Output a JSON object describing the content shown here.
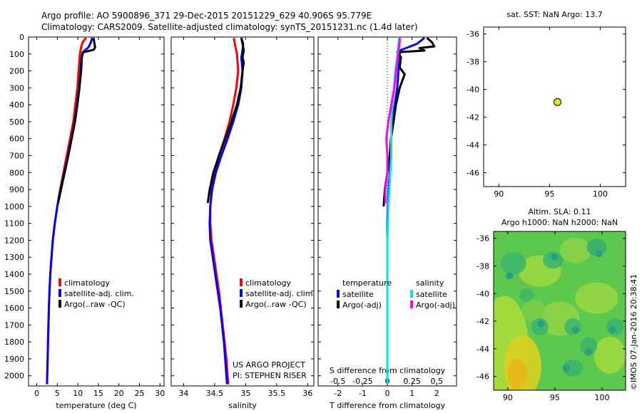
{
  "figure": {
    "title_line1": "Argo profile: AO 5900896_371 29-Dec-2015 20151229_629 40.906S 95.779E",
    "title_line2": "Climatology: CARS2009. Satellite-adjusted climatology: synTS_20151231.nc (1.4d later)",
    "credit": "©IMOS 07-Jan-2016 20:38:41",
    "project_line1": "US ARGO PROJECT",
    "project_line2": "PI: STEPHEN RISER"
  },
  "colors": {
    "climatology": "#ff0000",
    "satellite": "#0000ff",
    "argo": "#000000",
    "sal_satellite": "#00e5e5",
    "sal_argo": "#ff00ff",
    "point": "#e6e600",
    "axis": "#000000"
  },
  "chart_data": [
    {
      "type": "line",
      "xlabel": "temperature (deg C)",
      "ylabel": "",
      "xlim": [
        -2,
        31
      ],
      "ylim": [
        2060,
        0
      ],
      "xticks": [
        0,
        5,
        10,
        15,
        20,
        25,
        30
      ],
      "yticks": [
        0,
        100,
        200,
        300,
        400,
        500,
        600,
        700,
        800,
        900,
        1000,
        1100,
        1200,
        1300,
        1400,
        1500,
        1600,
        1700,
        1800,
        1900,
        2000
      ],
      "legend": [
        "climatology",
        "satellite-adj. clim.",
        "Argo(..raw -QC)"
      ],
      "series": [
        {
          "name": "climatology",
          "color": "climatology",
          "points": [
            [
              12.0,
              5
            ],
            [
              11.2,
              30
            ],
            [
              10.8,
              60
            ],
            [
              10.5,
              100
            ],
            [
              10.2,
              200
            ],
            [
              9.9,
              300
            ],
            [
              9.4,
              400
            ],
            [
              8.9,
              500
            ],
            [
              8.1,
              600
            ],
            [
              7.3,
              700
            ],
            [
              6.5,
              800
            ],
            [
              5.7,
              900
            ],
            [
              5.0,
              1000
            ],
            [
              4.4,
              1100
            ],
            [
              3.9,
              1200
            ],
            [
              3.6,
              1300
            ],
            [
              3.3,
              1400
            ],
            [
              3.1,
              1500
            ],
            [
              2.95,
              1600
            ],
            [
              2.85,
              1700
            ],
            [
              2.75,
              1800
            ],
            [
              2.65,
              1900
            ],
            [
              2.55,
              2000
            ],
            [
              2.5,
              2050
            ]
          ]
        },
        {
          "name": "satellite-adj. clim.",
          "color": "satellite",
          "points": [
            [
              13.5,
              5
            ],
            [
              13.2,
              30
            ],
            [
              12.6,
              60
            ],
            [
              11.2,
              90
            ],
            [
              10.9,
              120
            ],
            [
              10.7,
              200
            ],
            [
              10.3,
              300
            ],
            [
              9.8,
              400
            ],
            [
              9.2,
              500
            ],
            [
              8.4,
              600
            ],
            [
              7.6,
              700
            ],
            [
              6.7,
              800
            ],
            [
              5.8,
              900
            ],
            [
              5.0,
              1000
            ],
            [
              4.4,
              1100
            ],
            [
              3.9,
              1200
            ],
            [
              3.6,
              1300
            ],
            [
              3.3,
              1400
            ],
            [
              3.1,
              1500
            ],
            [
              2.95,
              1600
            ],
            [
              2.85,
              1700
            ],
            [
              2.75,
              1800
            ],
            [
              2.65,
              1900
            ],
            [
              2.55,
              2000
            ],
            [
              2.5,
              2050
            ]
          ]
        },
        {
          "name": "Argo(..raw -QC)",
          "color": "argo",
          "points": [
            [
              13.8,
              5
            ],
            [
              14.0,
              30
            ],
            [
              14.2,
              60
            ],
            [
              13.9,
              75
            ],
            [
              11.3,
              90
            ],
            [
              11.0,
              120
            ],
            [
              10.8,
              200
            ],
            [
              10.4,
              300
            ],
            [
              9.9,
              400
            ],
            [
              9.3,
              500
            ],
            [
              8.5,
              600
            ],
            [
              7.7,
              700
            ],
            [
              6.8,
              800
            ],
            [
              5.9,
              900
            ],
            [
              5.2,
              980
            ]
          ]
        }
      ]
    },
    {
      "type": "line",
      "xlabel": "salinity",
      "ylabel": "",
      "xlim": [
        33.8,
        36.1
      ],
      "ylim": [
        2060,
        0
      ],
      "xticks": [
        34,
        34.5,
        35,
        35.5,
        36
      ],
      "legend": [
        "climatology",
        "satellite-adj. clim.",
        "Argo(..raw -QC)"
      ],
      "series": [
        {
          "name": "climatology",
          "color": "climatology",
          "points": [
            [
              34.81,
              5
            ],
            [
              34.83,
              50
            ],
            [
              34.86,
              100
            ],
            [
              34.88,
              200
            ],
            [
              34.85,
              300
            ],
            [
              34.8,
              400
            ],
            [
              34.74,
              500
            ],
            [
              34.66,
              600
            ],
            [
              34.57,
              700
            ],
            [
              34.5,
              800
            ],
            [
              34.45,
              900
            ],
            [
              34.43,
              1000
            ],
            [
              34.43,
              1100
            ],
            [
              34.45,
              1200
            ],
            [
              34.49,
              1300
            ],
            [
              34.53,
              1400
            ],
            [
              34.57,
              1500
            ],
            [
              34.6,
              1600
            ],
            [
              34.63,
              1700
            ],
            [
              34.66,
              1800
            ],
            [
              34.69,
              1900
            ],
            [
              34.71,
              2000
            ],
            [
              34.72,
              2050
            ]
          ]
        },
        {
          "name": "satellite-adj. clim.",
          "color": "satellite",
          "points": [
            [
              34.93,
              5
            ],
            [
              34.96,
              40
            ],
            [
              34.95,
              80
            ],
            [
              34.93,
              120
            ],
            [
              34.95,
              200
            ],
            [
              34.93,
              300
            ],
            [
              34.88,
              400
            ],
            [
              34.8,
              500
            ],
            [
              34.71,
              600
            ],
            [
              34.61,
              700
            ],
            [
              34.52,
              800
            ],
            [
              34.46,
              900
            ],
            [
              34.43,
              1000
            ],
            [
              34.42,
              1100
            ],
            [
              34.43,
              1200
            ],
            [
              34.47,
              1300
            ],
            [
              34.51,
              1400
            ],
            [
              34.55,
              1500
            ],
            [
              34.59,
              1600
            ],
            [
              34.62,
              1700
            ],
            [
              34.65,
              1800
            ],
            [
              34.67,
              1900
            ],
            [
              34.69,
              2000
            ],
            [
              34.7,
              2050
            ]
          ]
        },
        {
          "name": "Argo(..raw -QC)",
          "color": "argo",
          "points": [
            [
              34.93,
              5
            ],
            [
              34.95,
              40
            ],
            [
              34.97,
              80
            ],
            [
              34.95,
              120
            ],
            [
              34.97,
              150
            ],
            [
              34.95,
              200
            ],
            [
              34.92,
              300
            ],
            [
              34.86,
              400
            ],
            [
              34.77,
              500
            ],
            [
              34.67,
              600
            ],
            [
              34.57,
              700
            ],
            [
              34.48,
              800
            ],
            [
              34.42,
              900
            ],
            [
              34.39,
              980
            ]
          ]
        }
      ]
    },
    {
      "type": "line",
      "xlabel": "T difference from climatology",
      "x2label": "S difference from climatology",
      "ylabel": "",
      "xlim": [
        -2.8,
        2.8
      ],
      "x2lim": [
        -0.7,
        0.7
      ],
      "ylim": [
        2060,
        0
      ],
      "xticks": [
        -2,
        -1,
        0,
        1,
        2
      ],
      "x2ticks": [
        -0.5,
        -0.25,
        0,
        0.25,
        0.5
      ],
      "legend_titles": [
        "temperature",
        "salinity"
      ],
      "legend": [
        "satellite",
        "Argo(-adj)",
        "satellite",
        "Argo(-adj)"
      ],
      "series": [
        {
          "name": "satellite",
          "color": "satellite",
          "axis": "T",
          "points": [
            [
              1.5,
              5
            ],
            [
              1.2,
              40
            ],
            [
              0.5,
              80
            ],
            [
              0.5,
              120
            ],
            [
              0.45,
              200
            ],
            [
              0.4,
              300
            ],
            [
              0.3,
              400
            ],
            [
              0.2,
              500
            ],
            [
              0.15,
              600
            ],
            [
              0.1,
              700
            ],
            [
              0.1,
              800
            ],
            [
              0.05,
              900
            ],
            [
              0.02,
              1000
            ],
            [
              0.0,
              1100
            ],
            [
              0.0,
              1200
            ],
            [
              0.0,
              1300
            ],
            [
              0.0,
              1400
            ],
            [
              0.0,
              1500
            ],
            [
              0.0,
              1600
            ],
            [
              0.0,
              1700
            ],
            [
              0.0,
              1800
            ],
            [
              0.0,
              1900
            ],
            [
              0.0,
              2000
            ],
            [
              0.0,
              2050
            ]
          ]
        },
        {
          "name": "Argo(-adj)",
          "color": "argo",
          "axis": "T",
          "points": [
            [
              1.6,
              5
            ],
            [
              1.8,
              30
            ],
            [
              1.9,
              55
            ],
            [
              1.3,
              65
            ],
            [
              1.5,
              80
            ],
            [
              0.4,
              90
            ],
            [
              0.55,
              120
            ],
            [
              0.5,
              180
            ],
            [
              0.7,
              220
            ],
            [
              0.5,
              300
            ],
            [
              0.35,
              400
            ],
            [
              0.25,
              500
            ],
            [
              0.15,
              600
            ],
            [
              0.1,
              700
            ],
            [
              0.0,
              800
            ],
            [
              -0.1,
              900
            ],
            [
              -0.15,
              1000
            ]
          ]
        },
        {
          "name": "satellite",
          "color": "sal_satellite",
          "axis": "S",
          "points": [
            [
              0.12,
              5
            ],
            [
              0.11,
              60
            ],
            [
              0.1,
              120
            ],
            [
              0.08,
              200
            ],
            [
              0.07,
              300
            ],
            [
              0.05,
              400
            ],
            [
              0.04,
              500
            ],
            [
              0.04,
              600
            ],
            [
              0.04,
              700
            ],
            [
              0.03,
              800
            ],
            [
              0.02,
              900
            ],
            [
              0.01,
              1000
            ],
            [
              0.0,
              1200
            ],
            [
              0.0,
              1500
            ],
            [
              0.0,
              2000
            ],
            [
              0.0,
              2050
            ]
          ]
        },
        {
          "name": "Argo(-adj)",
          "color": "sal_argo",
          "axis": "S",
          "points": [
            [
              0.13,
              5
            ],
            [
              0.12,
              50
            ],
            [
              0.11,
              100
            ],
            [
              0.1,
              150
            ],
            [
              0.09,
              200
            ],
            [
              0.07,
              300
            ],
            [
              0.04,
              400
            ],
            [
              0.01,
              500
            ],
            [
              -0.01,
              600
            ],
            [
              0.0,
              700
            ],
            [
              0.0,
              800
            ],
            [
              -0.02,
              900
            ],
            [
              -0.02,
              980
            ]
          ]
        }
      ]
    },
    {
      "type": "scatter",
      "title": "sat. SST: NaN Argo: 13.7",
      "xlim": [
        88.5,
        102.5
      ],
      "ylim": [
        -47,
        -35.5
      ],
      "xticks": [
        90,
        95,
        100
      ],
      "yticks": [
        -36,
        -38,
        -40,
        -42,
        -44,
        -46
      ],
      "points": [
        [
          95.779,
          -40.906
        ]
      ]
    },
    {
      "type": "heatmap",
      "title_line1": "Altim. SLA: 0.11",
      "title_line2": "Argo h1000: NaN h2000: NaN",
      "xlim": [
        88.5,
        102.5
      ],
      "ylim": [
        -47,
        -35.5
      ],
      "xticks": [
        90,
        95,
        100
      ],
      "yticks": [
        -36,
        -38,
        -40,
        -42,
        -44,
        -46
      ]
    }
  ]
}
